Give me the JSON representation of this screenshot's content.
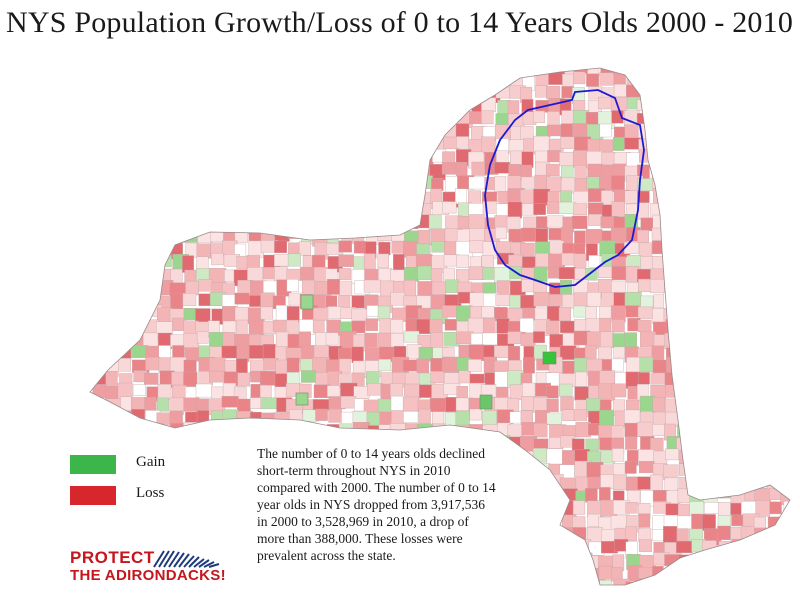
{
  "title": "NYS Population Growth/Loss of 0 to 14 Years Olds 2000 - 2010",
  "legend": {
    "items": [
      {
        "label": "Gain",
        "color": "#3cb54a"
      },
      {
        "label": "Loss",
        "color": "#d7262c"
      }
    ]
  },
  "description": "The number of 0 to 14 years olds declined short-term throughout NYS in 2010 compared with 2000. The number of 0 to 14 year olds in NYS dropped from 3,917,536 in 2000 to 3,528,969 in 2010, a drop of more than 388,000. These losses were prevalent across the state.",
  "logo": {
    "line1": "PROTECT",
    "line2": "THE ADIRONDACKS!"
  },
  "colors": {
    "gain": "#3cb54a",
    "loss": "#d7262c",
    "adirondack_boundary": "#1a1ad6"
  }
}
